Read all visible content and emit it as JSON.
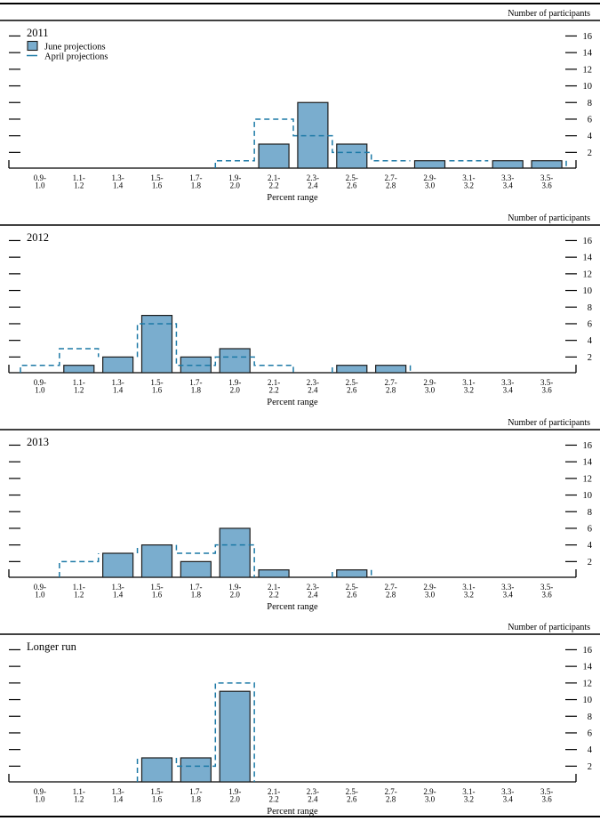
{
  "page": {
    "y_axis_caption": "Number of participants",
    "x_axis_caption": "Percent range",
    "legend": {
      "panel": "2011",
      "june_label": "June projections",
      "april_label": "April projections"
    },
    "y_ticks": [
      2,
      4,
      6,
      8,
      10,
      12,
      14,
      16
    ],
    "colors": {
      "bar_fill": "#7aadce",
      "bar_stroke": "#1c1c1c",
      "april_line": "#1c79a6",
      "text": "#000000",
      "rule": "#000000"
    }
  },
  "chart_data": [
    {
      "type": "bar",
      "title": "2011",
      "categories": [
        "0.9-1.0",
        "1.1-1.2",
        "1.3-1.4",
        "1.5-1.6",
        "1.7-1.8",
        "1.9-2.0",
        "2.1-2.2",
        "2.3-2.4",
        "2.5-2.6",
        "2.7-2.8",
        "2.9-3.0",
        "3.1-3.2",
        "3.3-3.4",
        "3.5-3.6"
      ],
      "series": [
        {
          "name": "June projections",
          "style": "filled-bar",
          "values": [
            0,
            0,
            0,
            0,
            0,
            0,
            3,
            8,
            3,
            0,
            1,
            0,
            1,
            1
          ]
        },
        {
          "name": "April projections",
          "style": "dashed-step-outline",
          "values": [
            0,
            0,
            0,
            0,
            0,
            1,
            6,
            4,
            2,
            1,
            1,
            1,
            1,
            1
          ]
        }
      ],
      "xlabel": "Percent range",
      "ylabel": "Number of participants",
      "ylim": [
        0,
        17
      ],
      "yticks": [
        2,
        4,
        6,
        8,
        10,
        12,
        14,
        16
      ],
      "grid": false,
      "legend_position": "top-left"
    },
    {
      "type": "bar",
      "title": "2012",
      "categories": [
        "0.9-1.0",
        "1.1-1.2",
        "1.3-1.4",
        "1.5-1.6",
        "1.7-1.8",
        "1.9-2.0",
        "2.1-2.2",
        "2.3-2.4",
        "2.5-2.6",
        "2.7-2.8",
        "2.9-3.0",
        "3.1-3.2",
        "3.3-3.4",
        "3.5-3.6"
      ],
      "series": [
        {
          "name": "June projections",
          "style": "filled-bar",
          "values": [
            0,
            1,
            2,
            7,
            2,
            3,
            0,
            0,
            1,
            1,
            0,
            0,
            0,
            0
          ]
        },
        {
          "name": "April projections",
          "style": "dashed-step-outline",
          "values": [
            1,
            3,
            2,
            6,
            1,
            2,
            1,
            0,
            1,
            1,
            0,
            0,
            0,
            0
          ]
        }
      ],
      "xlabel": "Percent range",
      "ylabel": "Number of participants",
      "ylim": [
        0,
        17
      ],
      "yticks": [
        2,
        4,
        6,
        8,
        10,
        12,
        14,
        16
      ],
      "grid": false,
      "legend_position": "none"
    },
    {
      "type": "bar",
      "title": "2013",
      "categories": [
        "0.9-1.0",
        "1.1-1.2",
        "1.3-1.4",
        "1.5-1.6",
        "1.7-1.8",
        "1.9-2.0",
        "2.1-2.2",
        "2.3-2.4",
        "2.5-2.6",
        "2.7-2.8",
        "2.9-3.0",
        "3.1-3.2",
        "3.3-3.4",
        "3.5-3.6"
      ],
      "series": [
        {
          "name": "June projections",
          "style": "filled-bar",
          "values": [
            0,
            0,
            3,
            4,
            2,
            6,
            1,
            0,
            1,
            0,
            0,
            0,
            0,
            0
          ]
        },
        {
          "name": "April projections",
          "style": "dashed-step-outline",
          "values": [
            0,
            2,
            3,
            4,
            3,
            4,
            0,
            0,
            1,
            0,
            0,
            0,
            0,
            0
          ]
        }
      ],
      "xlabel": "Percent range",
      "ylabel": "Number of participants",
      "ylim": [
        0,
        17
      ],
      "yticks": [
        2,
        4,
        6,
        8,
        10,
        12,
        14,
        16
      ],
      "grid": false,
      "legend_position": "none"
    },
    {
      "type": "bar",
      "title": "Longer run",
      "categories": [
        "0.9-1.0",
        "1.1-1.2",
        "1.3-1.4",
        "1.5-1.6",
        "1.7-1.8",
        "1.9-2.0",
        "2.1-2.2",
        "2.3-2.4",
        "2.5-2.6",
        "2.7-2.8",
        "2.9-3.0",
        "3.1-3.2",
        "3.3-3.4",
        "3.5-3.6"
      ],
      "series": [
        {
          "name": "June projections",
          "style": "filled-bar",
          "values": [
            0,
            0,
            0,
            3,
            3,
            11,
            0,
            0,
            0,
            0,
            0,
            0,
            0,
            0
          ]
        },
        {
          "name": "April projections",
          "style": "dashed-step-outline",
          "values": [
            0,
            0,
            0,
            3,
            2,
            12,
            0,
            0,
            0,
            0,
            0,
            0,
            0,
            0
          ]
        }
      ],
      "xlabel": "Percent range",
      "ylabel": "Number of participants",
      "ylim": [
        0,
        17
      ],
      "yticks": [
        2,
        4,
        6,
        8,
        10,
        12,
        14,
        16
      ],
      "grid": false,
      "legend_position": "none"
    }
  ]
}
